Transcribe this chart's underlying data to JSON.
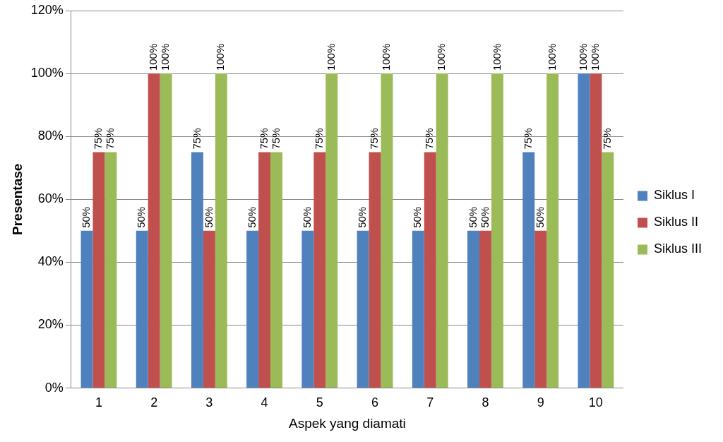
{
  "chart_data": {
    "type": "bar",
    "xlabel": "Aspek yang diamati",
    "ylabel": "Presentase",
    "categories": [
      "1",
      "2",
      "3",
      "4",
      "5",
      "6",
      "7",
      "8",
      "9",
      "10"
    ],
    "series": [
      {
        "name": "Siklus I",
        "color": "#4f81bd",
        "values": [
          50,
          50,
          75,
          50,
          50,
          50,
          50,
          50,
          75,
          100
        ],
        "value_labels": [
          "50%",
          "50%",
          "75%",
          "50%",
          "50%",
          "50%",
          "50%",
          "50%",
          "75%",
          "100%"
        ]
      },
      {
        "name": "Siklus II",
        "color": "#c0504d",
        "values": [
          75,
          100,
          50,
          75,
          75,
          75,
          75,
          50,
          50,
          100
        ],
        "value_labels": [
          "75%",
          "100%",
          "50%",
          "75%",
          "75%",
          "75%",
          "75%",
          "50%",
          "50%",
          "100%"
        ]
      },
      {
        "name": "Siklus III",
        "color": "#9bbb59",
        "values": [
          75,
          100,
          100,
          75,
          100,
          100,
          100,
          100,
          100,
          75
        ],
        "value_labels": [
          "75%",
          "100%",
          "100%",
          "75%",
          "100%",
          "100%",
          "100%",
          "100%",
          "100%",
          "75%"
        ]
      }
    ],
    "ylim": [
      0,
      120
    ],
    "yticks": [
      {
        "value": 0,
        "label": "0%"
      },
      {
        "value": 20,
        "label": "20%"
      },
      {
        "value": 40,
        "label": "40%"
      },
      {
        "value": 60,
        "label": "60%"
      },
      {
        "value": 80,
        "label": "80%"
      },
      {
        "value": 100,
        "label": "100%"
      },
      {
        "value": 120,
        "label": "120%"
      }
    ],
    "grid": "y",
    "legend": "right"
  }
}
